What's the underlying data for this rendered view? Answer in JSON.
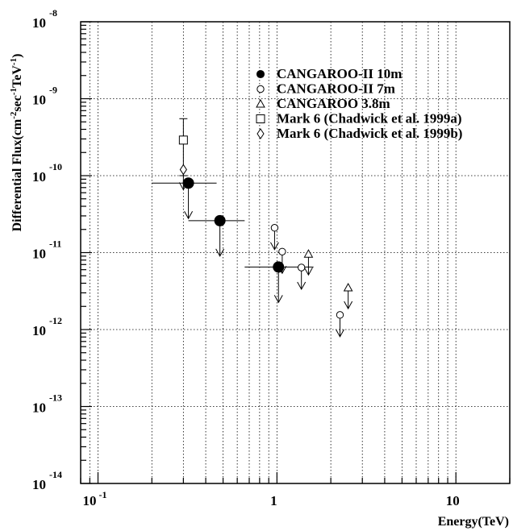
{
  "chart_data": {
    "type": "scatter",
    "xscale": "log",
    "yscale": "log",
    "xlim": [
      0.08,
      20
    ],
    "ylim": [
      1e-14,
      1e-08
    ],
    "grid": true,
    "legend_placement": "top-right",
    "xlabel": "Energy(TeV)",
    "ylabel_parts": {
      "a": "Differential Flux(cm",
      "b": "-2",
      "c": "sec",
      "d": "-1",
      "e": "TeV",
      "f": "-1",
      "g": ")"
    },
    "x_ticks": [
      {
        "value": 0.1,
        "base": "10",
        "exp": "-1"
      },
      {
        "value": 1,
        "base": "1",
        "exp": ""
      },
      {
        "value": 10,
        "base": "10",
        "exp": ""
      }
    ],
    "y_ticks": [
      {
        "value": 1e-08,
        "base": "10",
        "exp": "-8"
      },
      {
        "value": 1e-09,
        "base": "10",
        "exp": "-9"
      },
      {
        "value": 1e-10,
        "base": "10",
        "exp": "-10"
      },
      {
        "value": 1e-11,
        "base": "10",
        "exp": "-11"
      },
      {
        "value": 1e-12,
        "base": "10",
        "exp": "-12"
      },
      {
        "value": 1e-13,
        "base": "10",
        "exp": "-13"
      },
      {
        "value": 1e-14,
        "base": "10",
        "exp": "-14"
      }
    ],
    "series": [
      {
        "name": "CANGAROO-II 10m",
        "marker": "filled-circle",
        "points": [
          {
            "x": 0.32,
            "y": 8e-11,
            "xerr": [
              0.2,
              0.46
            ]
          },
          {
            "x": 0.48,
            "y": 2.6e-11,
            "xerr": [
              0.32,
              0.66
            ]
          },
          {
            "x": 1.02,
            "y": 6.5e-12,
            "xerr": [
              0.66,
              1.6
            ]
          }
        ]
      },
      {
        "name": "CANGAROO-II 7m",
        "marker": "open-circle",
        "points": [
          {
            "x": 0.97,
            "y": 2.1e-11
          },
          {
            "x": 1.07,
            "y": 1.03e-11
          },
          {
            "x": 1.37,
            "y": 6.4e-12
          },
          {
            "x": 2.25,
            "y": 1.55e-12
          }
        ]
      },
      {
        "name": "CANGAROO 3.8m",
        "marker": "open-triangle",
        "points": [
          {
            "x": 1.5,
            "y": 9.6e-12
          },
          {
            "x": 2.5,
            "y": 3.5e-12
          }
        ]
      },
      {
        "name": "Mark 6 (Chadwick et al. 1999a)",
        "marker": "open-square",
        "points": [
          {
            "x": 0.3,
            "y": 2.9e-10,
            "yerr": [
              1e-10,
              5.5e-10
            ]
          }
        ]
      },
      {
        "name": "Mark 6 (Chadwick et al. 1999b)",
        "marker": "open-diamond",
        "points": [
          {
            "x": 0.3,
            "y": 1.2e-10
          }
        ]
      }
    ]
  }
}
